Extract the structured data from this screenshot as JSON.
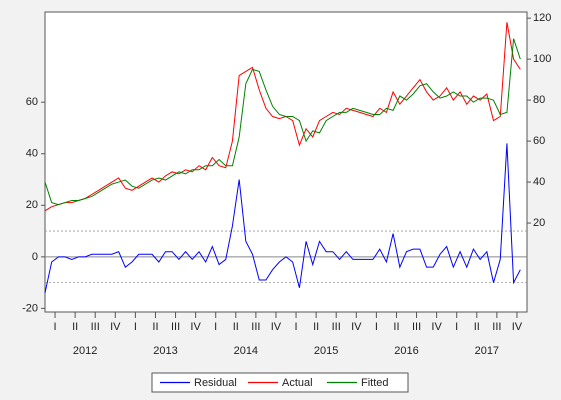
{
  "chart_data": {
    "type": "line",
    "x": [
      2012.0,
      2012.083,
      2012.167,
      2012.25,
      2012.333,
      2012.417,
      2012.5,
      2012.583,
      2012.667,
      2012.75,
      2012.833,
      2012.917,
      2013.0,
      2013.083,
      2013.167,
      2013.25,
      2013.333,
      2013.417,
      2013.5,
      2013.583,
      2013.667,
      2013.75,
      2013.833,
      2013.917,
      2014.0,
      2014.083,
      2014.167,
      2014.25,
      2014.333,
      2014.417,
      2014.5,
      2014.583,
      2014.667,
      2014.75,
      2014.833,
      2014.917,
      2015.0,
      2015.083,
      2015.167,
      2015.25,
      2015.333,
      2015.417,
      2015.5,
      2015.583,
      2015.667,
      2015.75,
      2015.833,
      2015.917,
      2016.0,
      2016.083,
      2016.167,
      2016.25,
      2016.333,
      2016.417,
      2016.5,
      2016.583,
      2016.667,
      2016.75,
      2016.833,
      2016.917,
      2017.0,
      2017.083,
      2017.167,
      2017.25,
      2017.333,
      2017.417,
      2017.5,
      2017.583,
      2017.667,
      2017.75,
      2017.833,
      2017.917
    ],
    "series": [
      {
        "name": "Residual",
        "color": "#0000ff",
        "axis": "y",
        "values": [
          -14,
          -2,
          0,
          0,
          -1,
          0,
          0,
          1,
          1,
          1,
          1,
          2,
          -4,
          -2,
          1,
          1,
          1,
          -2,
          2,
          2,
          -1,
          2,
          -1,
          2,
          -2,
          4,
          -3,
          -1,
          12,
          30,
          6,
          1,
          -9,
          -9,
          -5,
          -2,
          0,
          -2,
          -12,
          6,
          -3,
          6,
          2,
          2,
          -1,
          2,
          -1,
          -1,
          -1,
          -1,
          3,
          -2,
          9,
          -4,
          2,
          3,
          3,
          -4,
          -4,
          1,
          4,
          -4,
          2,
          -4,
          3,
          -1,
          2,
          -10,
          -1,
          44,
          -10,
          -5
        ]
      },
      {
        "name": "Actual",
        "color": "#ff0000",
        "axis": "y2",
        "values": [
          26,
          28,
          29,
          30,
          30,
          31,
          32,
          34,
          36,
          38,
          40,
          42,
          37,
          36,
          38,
          40,
          42,
          40,
          43,
          45,
          44,
          46,
          45,
          48,
          46,
          52,
          48,
          47,
          60,
          92,
          94,
          96,
          85,
          76,
          72,
          71,
          72,
          70,
          58,
          66,
          62,
          70,
          72,
          74,
          73,
          76,
          75,
          74,
          73,
          72,
          76,
          74,
          84,
          78,
          82,
          86,
          90,
          84,
          80,
          82,
          86,
          80,
          84,
          78,
          82,
          80,
          83,
          70,
          72,
          118,
          100,
          95
        ]
      },
      {
        "name": "Fitted",
        "color": "#008000",
        "axis": "y2",
        "values": [
          40,
          30,
          29,
          30,
          31,
          31,
          32,
          33,
          35,
          37,
          39,
          40,
          41,
          38,
          37,
          39,
          41,
          42,
          41,
          43,
          45,
          44,
          46,
          46,
          48,
          48,
          51,
          48,
          48,
          62,
          88,
          95,
          94,
          85,
          77,
          73,
          72,
          72,
          70,
          60,
          65,
          64,
          70,
          72,
          74,
          74,
          76,
          75,
          74,
          73,
          73,
          76,
          75,
          82,
          80,
          83,
          87,
          88,
          84,
          81,
          82,
          84,
          82,
          82,
          79,
          81,
          81,
          80,
          73,
          74,
          110,
          100
        ]
      }
    ],
    "xlim": [
      2012,
      2018
    ],
    "xticks": [
      {
        "value": 2012.125,
        "label": "I"
      },
      {
        "value": 2012.375,
        "label": "II"
      },
      {
        "value": 2012.625,
        "label": "III"
      },
      {
        "value": 2012.875,
        "label": "IV"
      },
      {
        "value": 2013.125,
        "label": "I"
      },
      {
        "value": 2013.375,
        "label": "II"
      },
      {
        "value": 2013.625,
        "label": "III"
      },
      {
        "value": 2013.875,
        "label": "IV"
      },
      {
        "value": 2014.125,
        "label": "I"
      },
      {
        "value": 2014.375,
        "label": "II"
      },
      {
        "value": 2014.625,
        "label": "III"
      },
      {
        "value": 2014.875,
        "label": "IV"
      },
      {
        "value": 2015.125,
        "label": "I"
      },
      {
        "value": 2015.375,
        "label": "II"
      },
      {
        "value": 2015.625,
        "label": "III"
      },
      {
        "value": 2015.875,
        "label": "IV"
      },
      {
        "value": 2016.125,
        "label": "I"
      },
      {
        "value": 2016.375,
        "label": "II"
      },
      {
        "value": 2016.625,
        "label": "III"
      },
      {
        "value": 2016.875,
        "label": "IV"
      },
      {
        "value": 2017.125,
        "label": "I"
      },
      {
        "value": 2017.375,
        "label": "II"
      },
      {
        "value": 2017.625,
        "label": "III"
      },
      {
        "value": 2017.875,
        "label": "IV"
      }
    ],
    "year_labels": [
      {
        "value": 2012.5,
        "label": "2012"
      },
      {
        "value": 2013.5,
        "label": "2013"
      },
      {
        "value": 2014.5,
        "label": "2014"
      },
      {
        "value": 2015.5,
        "label": "2015"
      },
      {
        "value": 2016.5,
        "label": "2016"
      },
      {
        "value": 2017.5,
        "label": "2017"
      }
    ],
    "ylim": [
      -21.4,
      95
    ],
    "yticks": [
      -20,
      0,
      20,
      40,
      60
    ],
    "y2lim": [
      -23.4,
      123
    ],
    "y2ticks": [
      20,
      40,
      60,
      80,
      100,
      120
    ],
    "residual_bands": [
      -10,
      10
    ],
    "zero_line": 0,
    "legend": "bottom"
  }
}
